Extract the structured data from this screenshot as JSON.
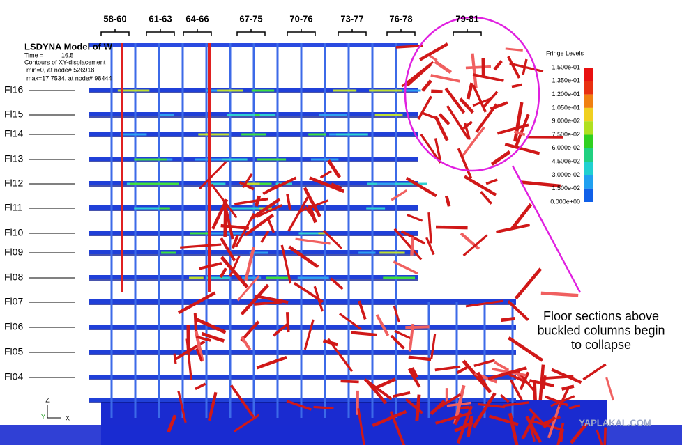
{
  "header": {
    "title": "LSDYNA Model of W",
    "time_label": "Time =",
    "time_value": "16.5",
    "contours": "Contours of XY-displacement",
    "min": "min=0, at node# 526918",
    "max": "max=17.7534, at node# 98444"
  },
  "column_labels": [
    "58-60",
    "61-63",
    "64-66",
    "67-75",
    "70-76",
    "73-77",
    "76-78",
    "79-81"
  ],
  "floor_labels": [
    "Fl16",
    "Fl15",
    "Fl14",
    "Fl13",
    "Fl12",
    "Fl11",
    "Fl10",
    "Fl09",
    "Fl08",
    "Fl07",
    "Fl06",
    "Fl05",
    "Fl04"
  ],
  "fringe": {
    "title": "Fringe Levels",
    "levels": [
      "1.500e-01",
      "1.350e-01",
      "1.200e-01",
      "1.050e-01",
      "9.000e-02",
      "7.500e-02",
      "6.000e-02",
      "4.500e-02",
      "3.000e-02",
      "1.500e-02",
      "0.000e+00"
    ]
  },
  "annotation": [
    "Floor sections above",
    "buckled columns begin",
    "to collapse"
  ],
  "axes": [
    "Z",
    "Y",
    "X"
  ],
  "watermark": "YAPLAKAL.COM"
}
